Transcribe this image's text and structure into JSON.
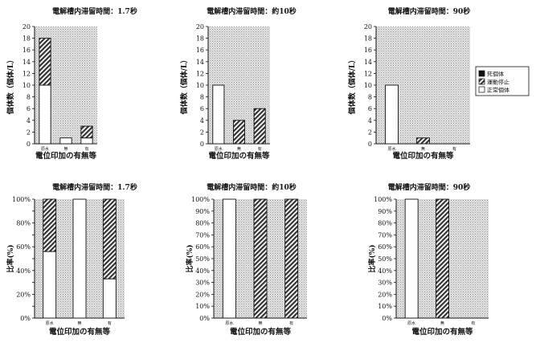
{
  "chart_data": [
    {
      "type": "bar",
      "stacked": true,
      "title": "電解槽内滞留時間：1.7秒",
      "xlabel": "電位印加の有無等",
      "ylabel": "個体数（個体/L）",
      "categories": [
        "原水",
        "無",
        "有"
      ],
      "ylim": [
        0,
        20
      ],
      "yticks": [
        0,
        2,
        4,
        6,
        8,
        10,
        12,
        14,
        16,
        18,
        20
      ],
      "series": [
        {
          "name": "正常個体",
          "values": [
            10,
            1,
            1
          ]
        },
        {
          "name": "運動停止",
          "values": [
            8,
            0,
            2
          ]
        },
        {
          "name": "死個体",
          "values": [
            0,
            0,
            0
          ]
        }
      ]
    },
    {
      "type": "bar",
      "stacked": true,
      "title": "電解槽内滞留時間：約10秒",
      "xlabel": "電位印加の有無等",
      "ylabel": "個体数（個体/L）",
      "categories": [
        "原水",
        "無",
        "有"
      ],
      "ylim": [
        0,
        20
      ],
      "yticks": [
        0,
        2,
        4,
        6,
        8,
        10,
        12,
        14,
        16,
        18,
        20
      ],
      "series": [
        {
          "name": "正常個体",
          "values": [
            10,
            0,
            0
          ]
        },
        {
          "name": "運動停止",
          "values": [
            0,
            4,
            6
          ]
        },
        {
          "name": "死個体",
          "values": [
            0,
            0,
            0
          ]
        }
      ]
    },
    {
      "type": "bar",
      "stacked": true,
      "title": "電解槽内滞留時間：90秒",
      "xlabel": "電位印加の有無等",
      "ylabel": "個体数（個体/L）",
      "categories": [
        "原水",
        "無",
        "有"
      ],
      "ylim": [
        0,
        20
      ],
      "yticks": [
        0,
        2,
        4,
        6,
        8,
        10,
        12,
        14,
        16,
        18,
        20
      ],
      "series": [
        {
          "name": "正常個体",
          "values": [
            10,
            0,
            0
          ]
        },
        {
          "name": "運動停止",
          "values": [
            0,
            1,
            0
          ]
        },
        {
          "name": "死個体",
          "values": [
            0,
            0,
            0
          ]
        }
      ]
    },
    {
      "type": "bar",
      "stacked": true,
      "title": "電解槽内滞留時間：1.7秒",
      "xlabel": "電位印加の有無等",
      "ylabel": "比率(%)",
      "categories": [
        "原水",
        "無",
        "有"
      ],
      "ylim": [
        0,
        100
      ],
      "yticks": [
        0,
        10,
        20,
        30,
        40,
        50,
        60,
        70,
        80,
        90,
        100
      ],
      "ytick_labels": [
        "0%",
        "",
        "20%",
        "",
        "40%",
        "",
        "60%",
        "",
        "80%",
        "",
        "100%"
      ],
      "series": [
        {
          "name": "正常個体",
          "values": [
            56,
            100,
            33
          ]
        },
        {
          "name": "運動停止",
          "values": [
            44,
            0,
            67
          ]
        },
        {
          "name": "死個体",
          "values": [
            0,
            0,
            0
          ]
        }
      ]
    },
    {
      "type": "bar",
      "stacked": true,
      "title": "電解槽内滞留時間：約10秒",
      "xlabel": "電位印加の有無等",
      "ylabel": "比率(%)",
      "categories": [
        "原水",
        "無",
        "有"
      ],
      "ylim": [
        0,
        100
      ],
      "yticks": [
        0,
        10,
        20,
        30,
        40,
        50,
        60,
        70,
        80,
        90,
        100
      ],
      "ytick_labels": [
        "0%",
        "10%",
        "20%",
        "30%",
        "40%",
        "50%",
        "60%",
        "70%",
        "80%",
        "90%",
        "100%"
      ],
      "series": [
        {
          "name": "正常個体",
          "values": [
            100,
            0,
            0
          ]
        },
        {
          "name": "運動停止",
          "values": [
            0,
            100,
            100
          ]
        },
        {
          "name": "死個体",
          "values": [
            0,
            0,
            0
          ]
        }
      ]
    },
    {
      "type": "bar",
      "stacked": true,
      "title": "電解槽内滞留時間：90秒",
      "xlabel": "電位印加の有無等",
      "ylabel": "比率(%)",
      "categories": [
        "原水",
        "無",
        "有"
      ],
      "ylim": [
        0,
        100
      ],
      "yticks": [
        0,
        10,
        20,
        30,
        40,
        50,
        60,
        70,
        80,
        90,
        100
      ],
      "ytick_labels": [
        "0%",
        "10%",
        "20%",
        "30%",
        "40%",
        "50%",
        "60%",
        "70%",
        "80%",
        "90%",
        "100%"
      ],
      "series": [
        {
          "name": "正常個体",
          "values": [
            100,
            0,
            0
          ]
        },
        {
          "name": "運動停止",
          "values": [
            0,
            100,
            0
          ]
        },
        {
          "name": "死個体",
          "values": [
            0,
            0,
            0
          ]
        }
      ]
    }
  ],
  "legend": {
    "placement": "right of top-right chart",
    "items": [
      {
        "name": "死個体",
        "style": "solid-black"
      },
      {
        "name": "運動停止",
        "style": "hatched"
      },
      {
        "name": "正常個体",
        "style": "white"
      }
    ]
  },
  "colors": {
    "plot_background": "#d6d6d6",
    "stopped_fill": "#555555",
    "normal_fill": "#ffffff",
    "dead_fill": "#111111"
  }
}
